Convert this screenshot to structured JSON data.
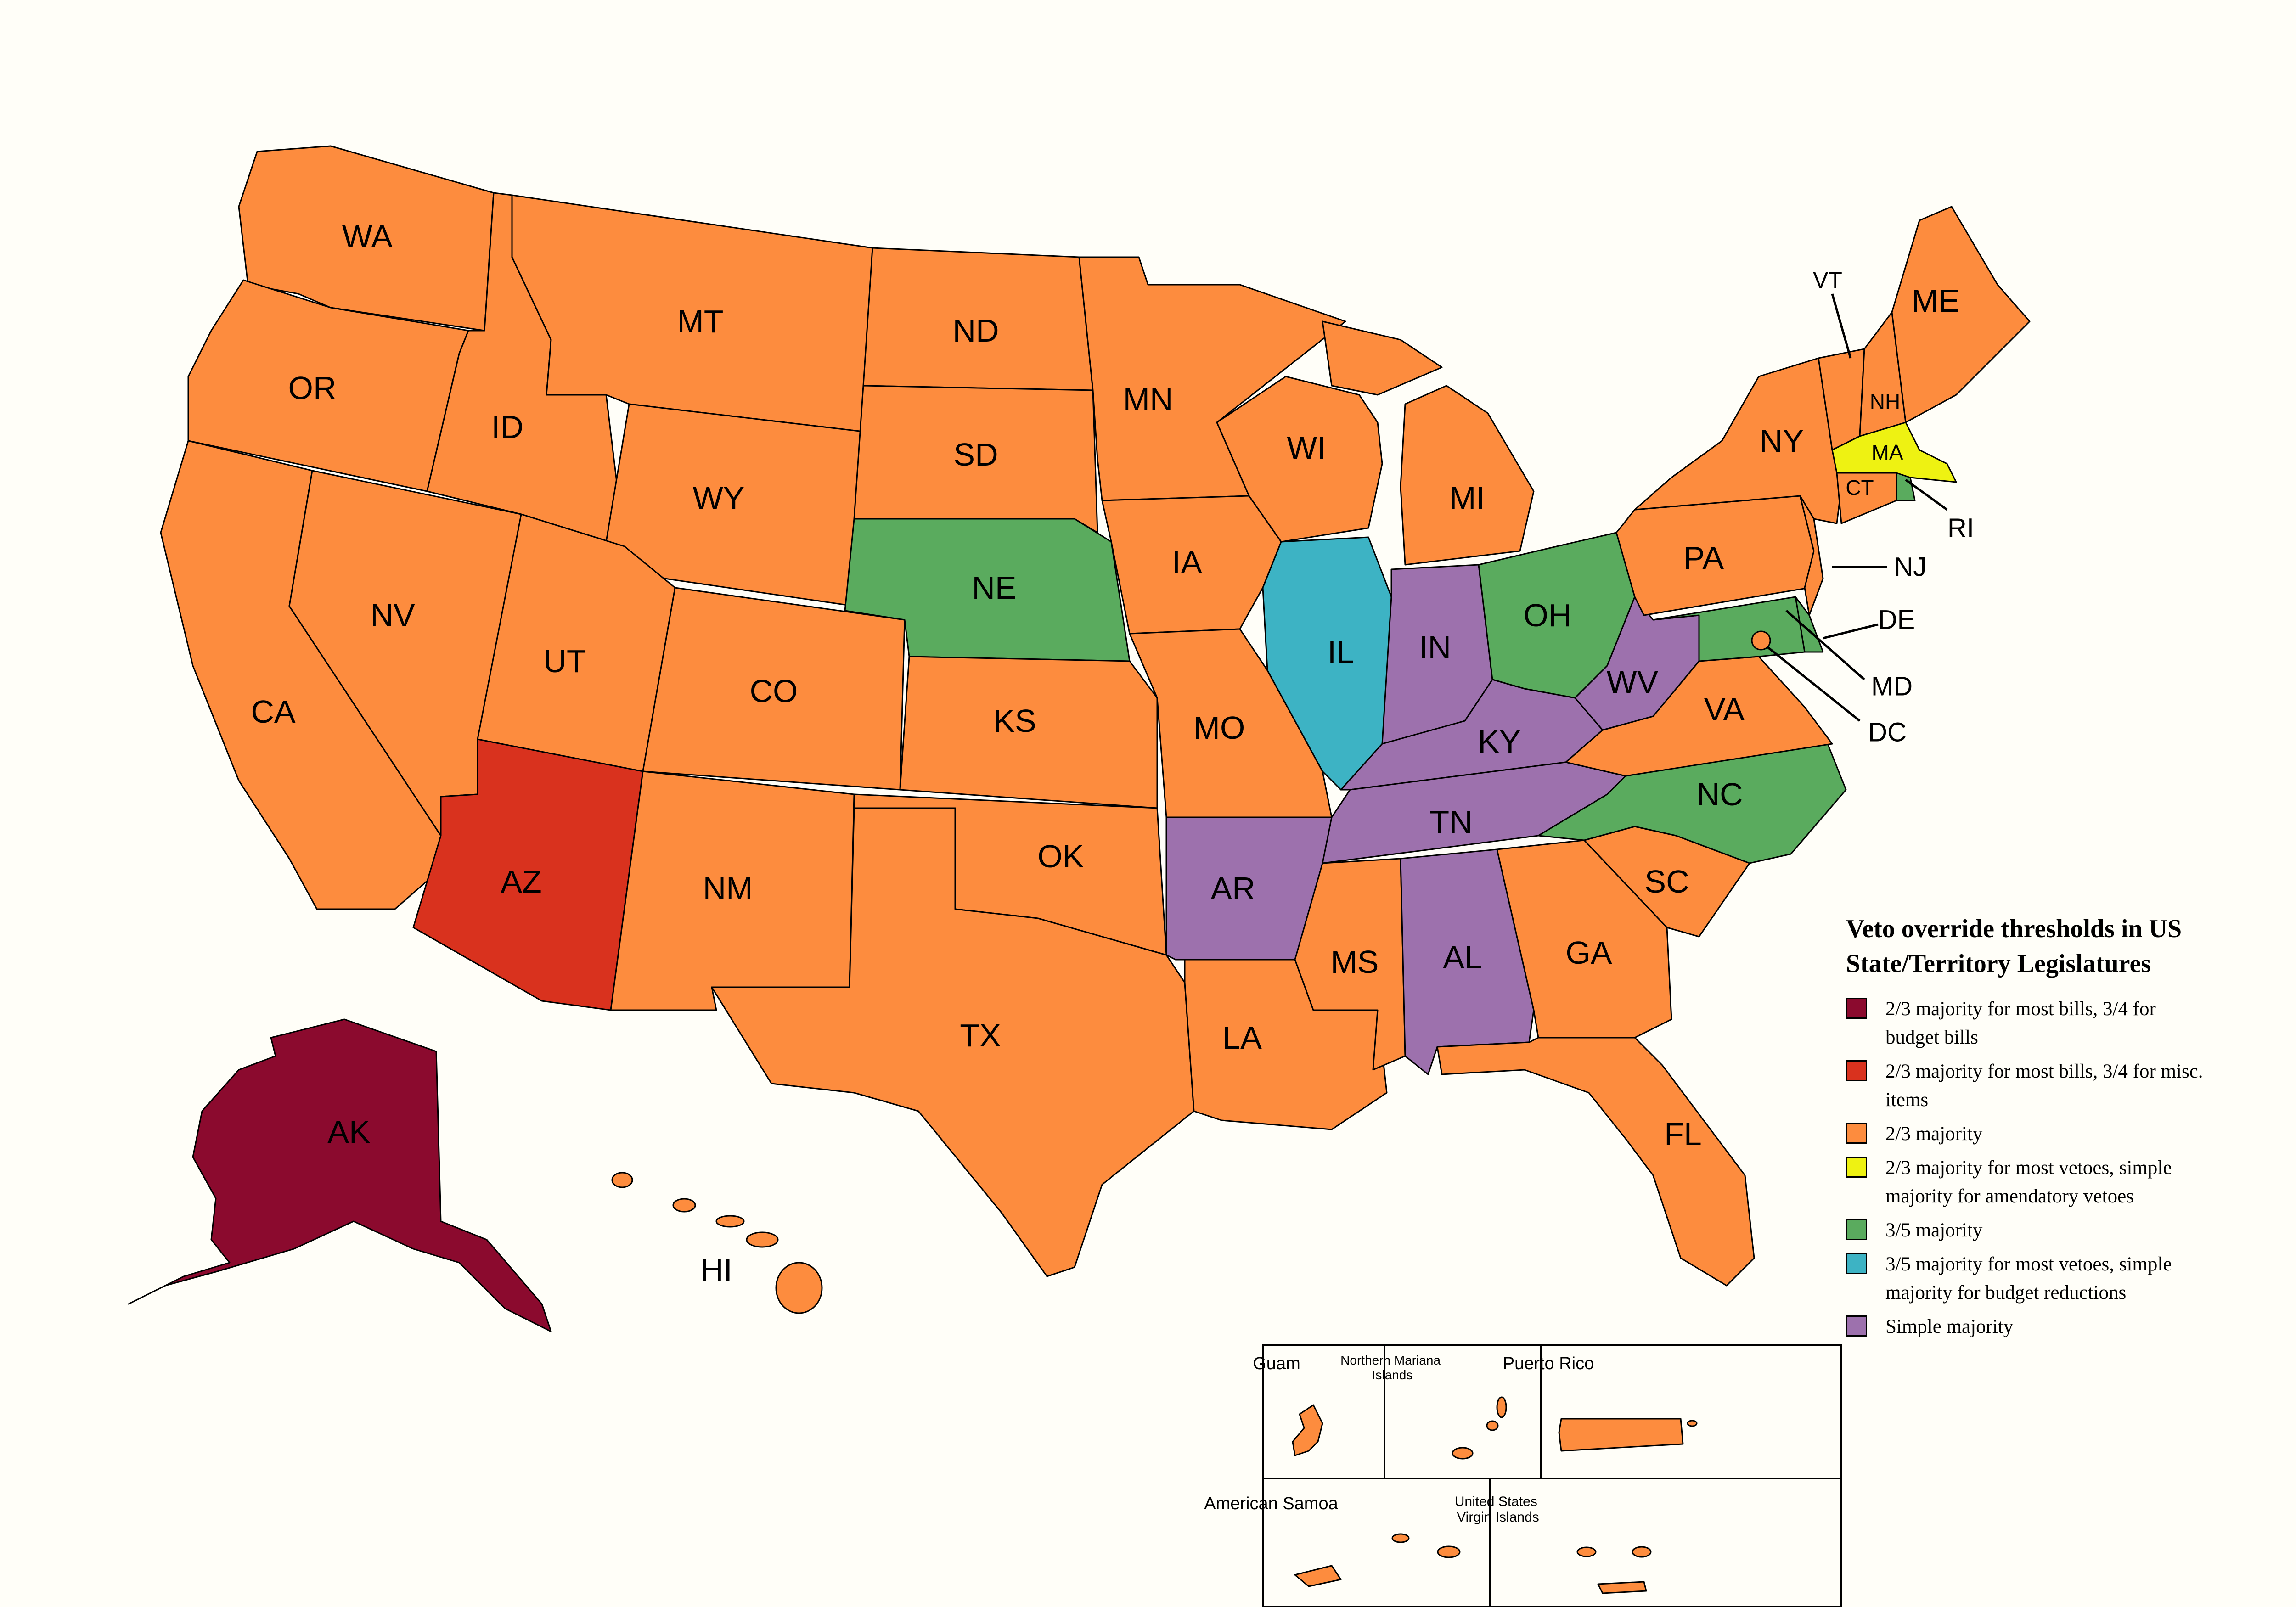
{
  "colors": {
    "ak": "#8b0a2e",
    "az": "#d9321e",
    "twothirds": "#fd8c3e",
    "ma": "#eef212",
    "threefifths": "#5aab5e",
    "il": "#3db3c4",
    "simple": "#9d71ad",
    "background": "#fffef8"
  },
  "states": {
    "WA": "WA",
    "OR": "OR",
    "CA": "CA",
    "NV": "NV",
    "ID": "ID",
    "MT": "MT",
    "WY": "WY",
    "UT": "UT",
    "AZ": "AZ",
    "CO": "CO",
    "NM": "NM",
    "ND": "ND",
    "SD": "SD",
    "NE": "NE",
    "KS": "KS",
    "OK": "OK",
    "TX": "TX",
    "MN": "MN",
    "IA": "IA",
    "MO": "MO",
    "AR": "AR",
    "LA": "LA",
    "WI": "WI",
    "IL": "IL",
    "MI": "MI",
    "IN": "IN",
    "OH": "OH",
    "KY": "KY",
    "TN": "TN",
    "MS": "MS",
    "AL": "AL",
    "GA": "GA",
    "FL": "FL",
    "SC": "SC",
    "NC": "NC",
    "VA": "VA",
    "WV": "WV",
    "PA": "PA",
    "NY": "NY",
    "VT": "VT",
    "NH": "NH",
    "ME": "ME",
    "MA": "MA",
    "CT": "CT",
    "RI": "RI",
    "NJ": "NJ",
    "DE": "DE",
    "MD": "MD",
    "DC": "DC",
    "AK": "AK",
    "HI": "HI"
  },
  "territories": {
    "guam": "Guam",
    "nmi": "Northern Mariana\nIslands",
    "puerto_rico": "Puerto Rico",
    "american_samoa": "American Samoa",
    "usvi": "United States\nVirgin Islands"
  },
  "legend": {
    "title": "Veto override thresholds in US State/Territory Legislatures",
    "items": [
      {
        "color_key": "ak",
        "label": "2/3 majority for most bills, 3/4 for budget bills"
      },
      {
        "color_key": "az",
        "label": "2/3 majority for most bills, 3/4 for misc. items"
      },
      {
        "color_key": "twothirds",
        "label": "2/3 majority"
      },
      {
        "color_key": "ma",
        "label": "2/3 majority for most vetoes, simple majority for amendatory vetoes"
      },
      {
        "color_key": "threefifths",
        "label": "3/5 majority"
      },
      {
        "color_key": "il",
        "label": "3/5 majority for most vetoes, simple majority for budget reductions"
      },
      {
        "color_key": "simple",
        "label": "Simple majority"
      }
    ]
  }
}
